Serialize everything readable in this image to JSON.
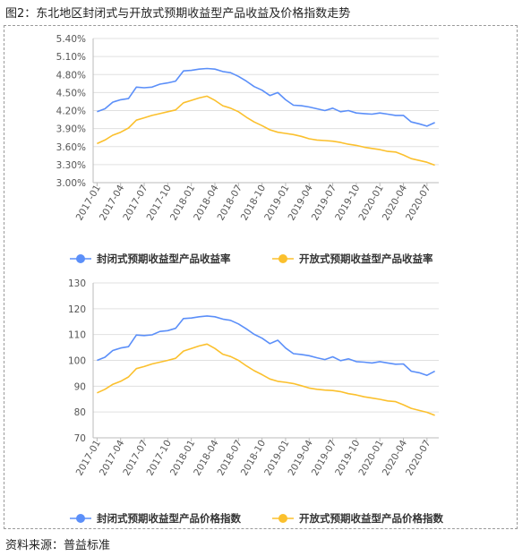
{
  "figure_title": "图2：东北地区封闭式与开放式预期收益型产品收益及价格指数走势",
  "source_note": "资料来源：普益标准",
  "colors": {
    "series1": "#5b8ff9",
    "series2": "#fbc02d",
    "grid": "#e0e0e0",
    "axis": "#bbbbbb"
  },
  "chart_data": [
    {
      "type": "line",
      "title": "",
      "xlabel": "",
      "ylabel": "",
      "legend_position": "bottom",
      "grid": true,
      "ylim": [
        3.0,
        5.4
      ],
      "y_ticks": [
        "3.00%",
        "3.30%",
        "3.60%",
        "3.90%",
        "4.20%",
        "4.50%",
        "4.80%",
        "5.10%",
        "5.40%"
      ],
      "x_tick_labels": [
        "2017-01",
        "2017-04",
        "2017-07",
        "2017-10",
        "2018-01",
        "2018-04",
        "2018-07",
        "2018-10",
        "2019-01",
        "2019-04",
        "2019-07",
        "2019-10",
        "2020-01",
        "2020-04",
        "2020-07"
      ],
      "series": [
        {
          "name": "封闭式预期收益型产品收益率",
          "values": [
            4.18,
            4.23,
            4.34,
            4.38,
            4.4,
            4.59,
            4.58,
            4.59,
            4.64,
            4.66,
            4.69,
            4.86,
            4.87,
            4.89,
            4.9,
            4.89,
            4.85,
            4.83,
            4.77,
            4.69,
            4.6,
            4.54,
            4.45,
            4.5,
            4.38,
            4.29,
            4.28,
            4.26,
            4.23,
            4.2,
            4.24,
            4.18,
            4.2,
            4.16,
            4.15,
            4.14,
            4.16,
            4.14,
            4.12,
            4.12,
            4.01,
            3.98,
            3.94,
            4.0
          ]
        },
        {
          "name": "开放式预期收益型产品收益率",
          "values": [
            3.65,
            3.71,
            3.79,
            3.84,
            3.91,
            4.04,
            4.08,
            4.12,
            4.15,
            4.18,
            4.21,
            4.33,
            4.37,
            4.41,
            4.44,
            4.37,
            4.28,
            4.24,
            4.18,
            4.09,
            4.01,
            3.95,
            3.88,
            3.84,
            3.82,
            3.8,
            3.77,
            3.73,
            3.71,
            3.7,
            3.69,
            3.67,
            3.64,
            3.62,
            3.59,
            3.57,
            3.55,
            3.52,
            3.51,
            3.46,
            3.4,
            3.37,
            3.34,
            3.29
          ]
        }
      ]
    },
    {
      "type": "line",
      "title": "",
      "xlabel": "",
      "ylabel": "",
      "legend_position": "bottom",
      "grid": true,
      "ylim": [
        70,
        130
      ],
      "y_ticks": [
        "70",
        "80",
        "90",
        "100",
        "110",
        "120",
        "130"
      ],
      "x_tick_labels": [
        "2017-01",
        "2017-04",
        "2017-07",
        "2017-10",
        "2018-01",
        "2018-04",
        "2018-07",
        "2018-10",
        "2019-01",
        "2019-04",
        "2019-07",
        "2019-10",
        "2020-01",
        "2020-04",
        "2020-07"
      ],
      "series": [
        {
          "name": "封闭式预期收益型产品价格指数",
          "values": [
            100.0,
            101.2,
            103.8,
            104.8,
            105.3,
            109.8,
            109.6,
            109.9,
            111.2,
            111.5,
            112.4,
            116.2,
            116.4,
            116.9,
            117.2,
            116.9,
            116.0,
            115.5,
            114.1,
            112.2,
            110.1,
            108.6,
            106.5,
            107.8,
            104.8,
            102.6,
            102.3,
            101.8,
            101.0,
            100.3,
            101.4,
            99.9,
            100.6,
            99.5,
            99.3,
            99.0,
            99.5,
            99.0,
            98.5,
            98.6,
            95.8,
            95.2,
            94.2,
            95.8
          ]
        },
        {
          "name": "开放式预期收益型产品价格指数",
          "values": [
            87.4,
            88.8,
            90.7,
            91.9,
            93.6,
            96.8,
            97.6,
            98.6,
            99.3,
            100.0,
            100.8,
            103.6,
            104.6,
            105.6,
            106.3,
            104.6,
            102.4,
            101.5,
            100.0,
            97.9,
            96.0,
            94.5,
            92.8,
            91.9,
            91.5,
            91.0,
            90.2,
            89.3,
            88.8,
            88.5,
            88.3,
            87.9,
            87.1,
            86.6,
            85.9,
            85.4,
            84.9,
            84.3,
            84.0,
            82.8,
            81.4,
            80.6,
            79.9,
            78.7
          ]
        }
      ]
    }
  ]
}
